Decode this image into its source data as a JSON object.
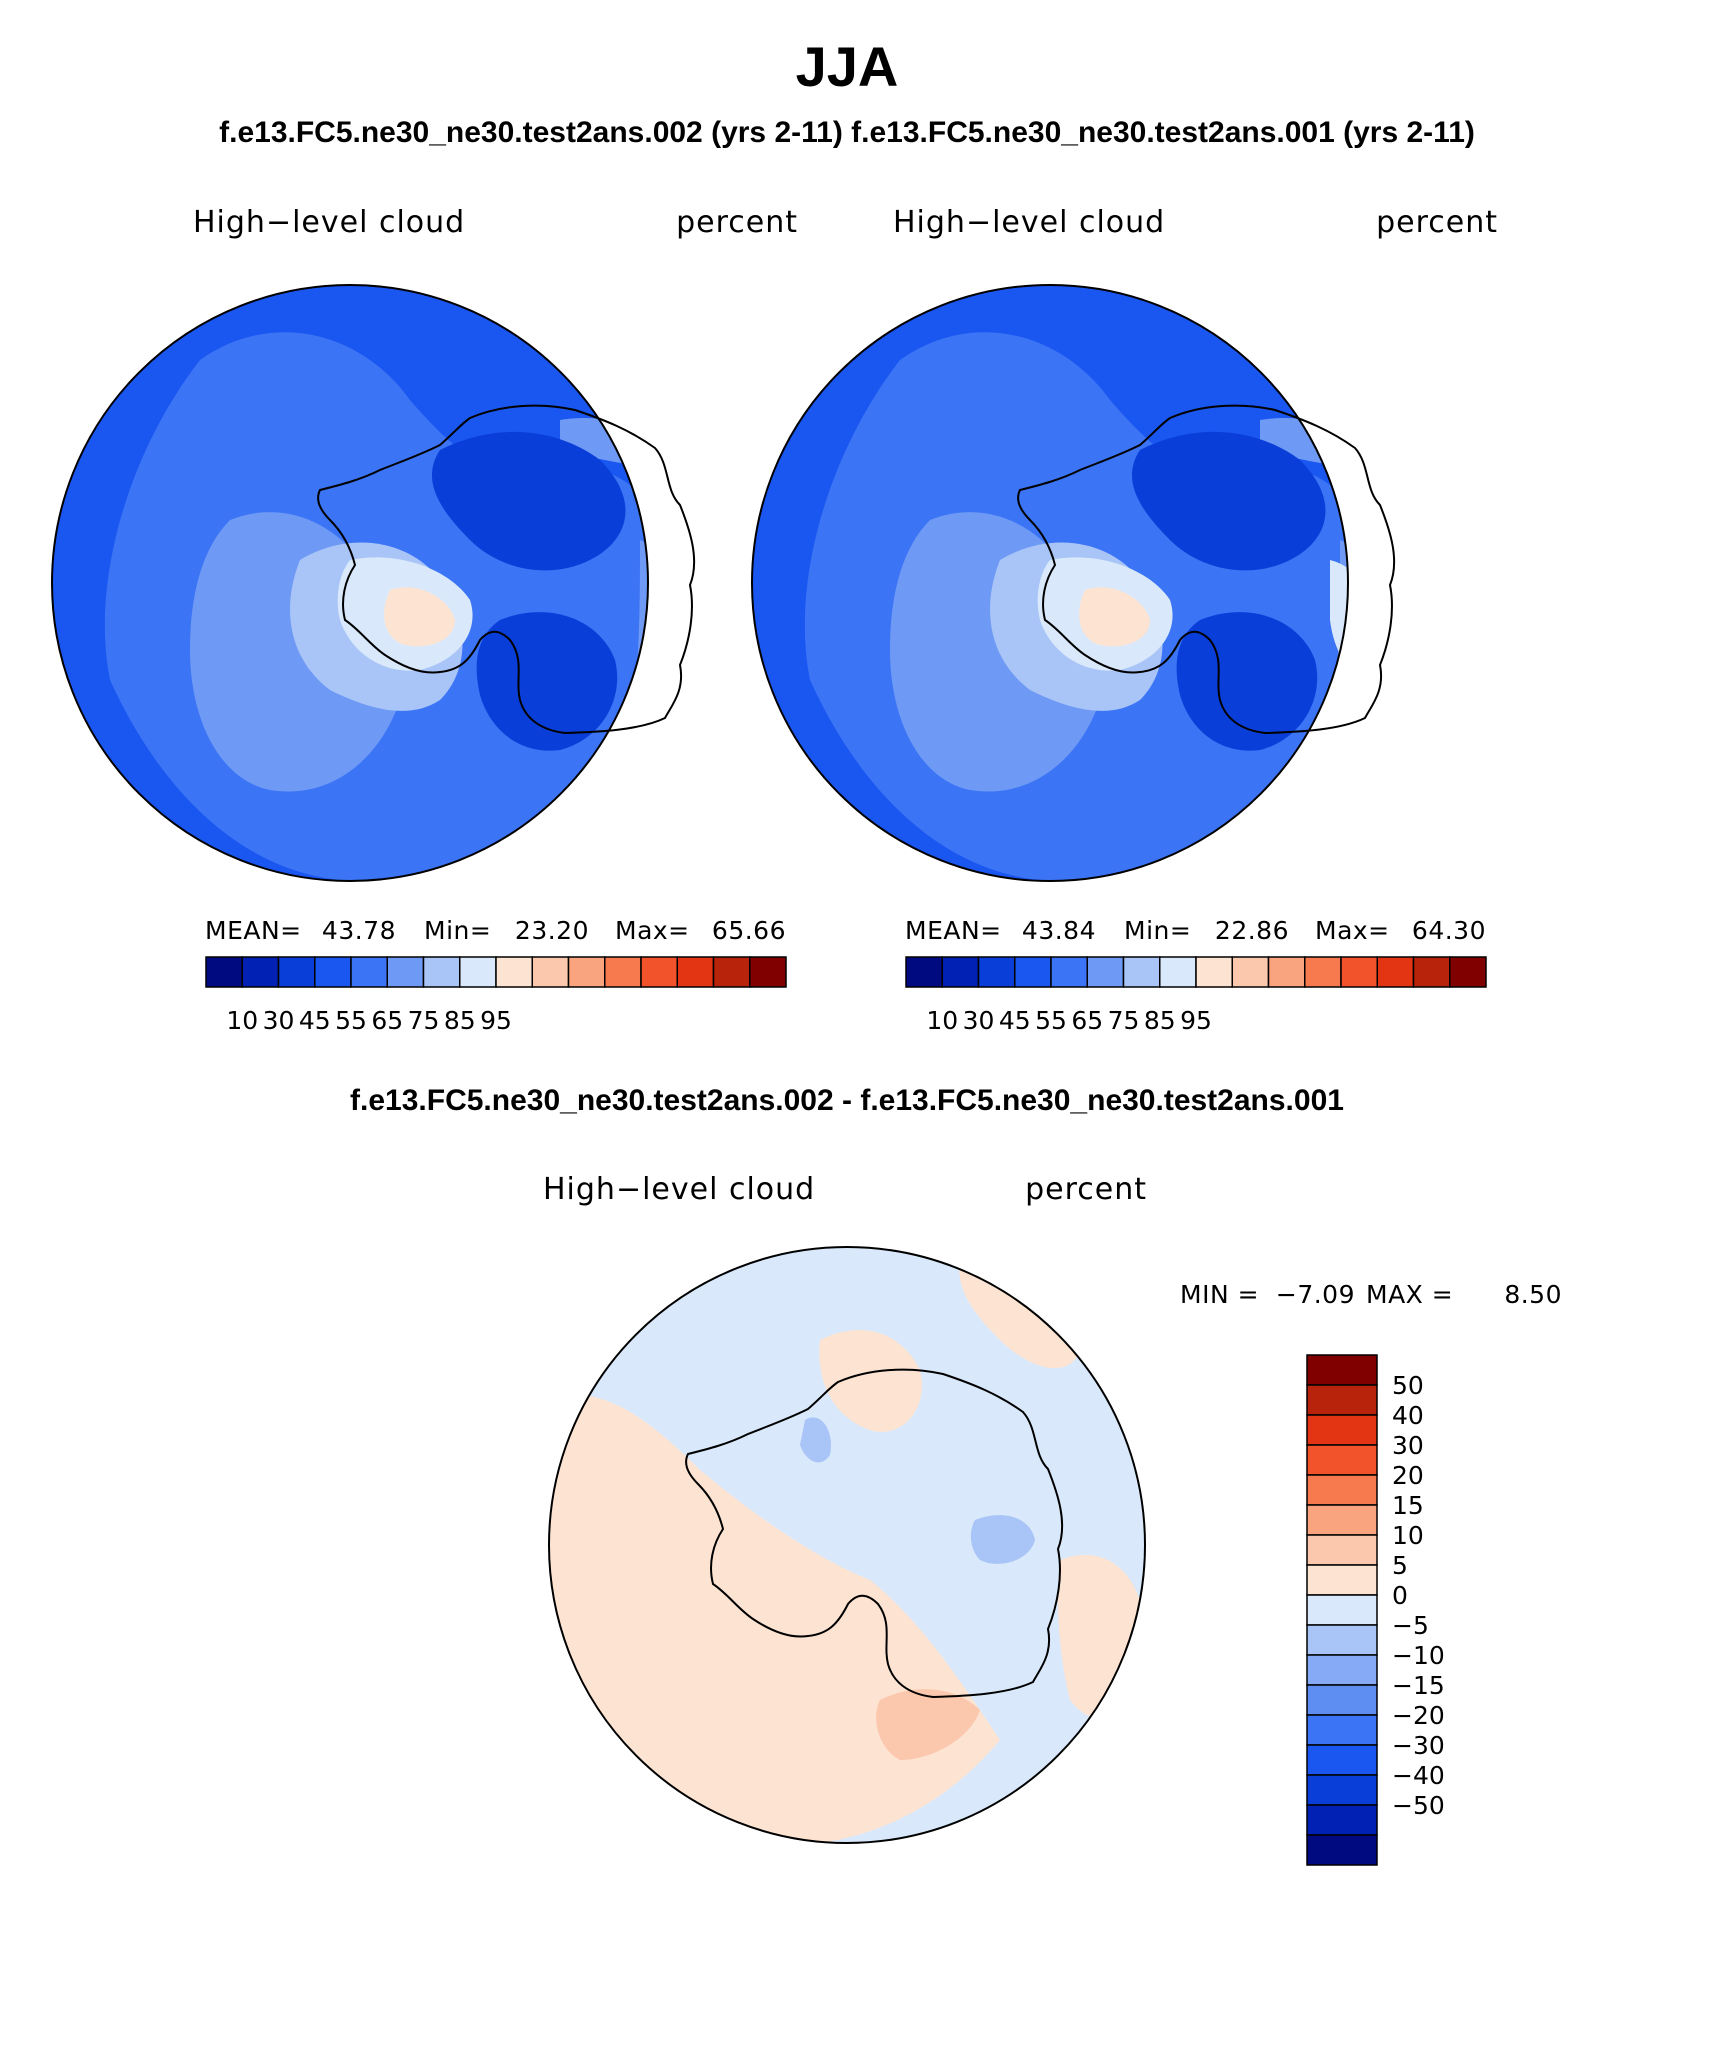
{
  "page": {
    "season_title": "JJA",
    "top_subtitle": "f.e13.FC5.ne30_ne30.test2ans.002 (yrs 2-11) f.e13.FC5.ne30_ne30.test2ans.001 (yrs 2-11)",
    "diff_subtitle": "f.e13.FC5.ne30_ne30.test2ans.002 - f.e13.FC5.ne30_ne30.test2ans.001"
  },
  "panels": [
    {
      "variable": "High−level cloud",
      "units": "percent",
      "mean_label": "MEAN=",
      "mean_value": "43.78",
      "min_label": "Min=",
      "min_value": "23.20",
      "max_label": "Max=",
      "max_value": "65.66"
    },
    {
      "variable": "High−level cloud",
      "units": "percent",
      "mean_label": "MEAN=",
      "mean_value": "43.84",
      "min_label": "Min=",
      "min_value": "22.86",
      "max_label": "Max=",
      "max_value": "64.30"
    },
    {
      "variable": "High−level cloud",
      "units": "percent",
      "min_label": "MIN =",
      "min_value": "−7.09",
      "max_label": "MAX =",
      "max_value": "8.50"
    }
  ],
  "colorbar_abs": {
    "colors": [
      "#000a80",
      "#0021b3",
      "#0a3ed9",
      "#1a56f0",
      "#3b74f5",
      "#6e9af5",
      "#a9c5f7",
      "#d9e9fb",
      "#fde4d2",
      "#fcc8ad",
      "#f9a47e",
      "#f77a4f",
      "#f3532a",
      "#e33413",
      "#b8230b",
      "#800000"
    ],
    "tick_labels": [
      "10",
      "30",
      "45",
      "55",
      "65",
      "75",
      "85",
      "95"
    ]
  },
  "colorbar_diff": {
    "colors": [
      "#800000",
      "#b8230b",
      "#e33413",
      "#f3532a",
      "#f77a4f",
      "#f9a47e",
      "#fcc8ad",
      "#fde4d2",
      "#d9e9fb",
      "#a9c5f7",
      "#86aaf5",
      "#5f8ef3",
      "#3b74f5",
      "#1a56f0",
      "#0a3ed9",
      "#0021b3",
      "#000a80"
    ],
    "tick_labels": [
      "50",
      "40",
      "30",
      "20",
      "15",
      "10",
      "5",
      "0",
      "−5",
      "−10",
      "−15",
      "−20",
      "−30",
      "−40",
      "−50"
    ]
  },
  "map_colors": {
    "base_abs": "#1a56f0",
    "level_45": "#3b74f5",
    "level_55": "#6e9af5",
    "level_60": "#a9c5f7",
    "level_65": "#d9e9fb",
    "level_70": "#fde4d2",
    "level_75": "#fcc8ad",
    "low_30": "#0a3ed9",
    "base_diff": "#d9e9fb",
    "diff_pos5": "#fde4d2",
    "diff_pos10": "#fcc8ad",
    "diff_neg5": "#a9c5f7"
  }
}
